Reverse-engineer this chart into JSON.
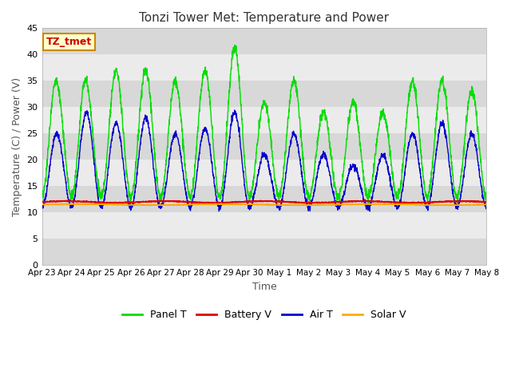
{
  "title": "Tonzi Tower Met: Temperature and Power",
  "xlabel": "Time",
  "ylabel": "Temperature (C) / Power (V)",
  "ylim": [
    0,
    45
  ],
  "yticks": [
    0,
    5,
    10,
    15,
    20,
    25,
    30,
    35,
    40,
    45
  ],
  "plot_bg_light": "#ebebeb",
  "plot_bg_dark": "#d8d8d8",
  "fig_bg_color": "#ffffff",
  "grid_color": "#ffffff",
  "xtick_labels": [
    "Apr 23",
    "Apr 24",
    "Apr 25",
    "Apr 26",
    "Apr 27",
    "Apr 28",
    "Apr 29",
    "Apr 30",
    "May 1",
    "May 2",
    "May 3",
    "May 4",
    "May 5",
    "May 6",
    "May 7",
    "May 8"
  ],
  "legend_entries": [
    "Panel T",
    "Battery V",
    "Air T",
    "Solar V"
  ],
  "legend_colors": [
    "#00dd00",
    "#dd0000",
    "#0000cc",
    "#ffaa00"
  ],
  "annotation_text": "TZ_tmet",
  "annotation_bg": "#ffffcc",
  "annotation_border": "#cc8800"
}
